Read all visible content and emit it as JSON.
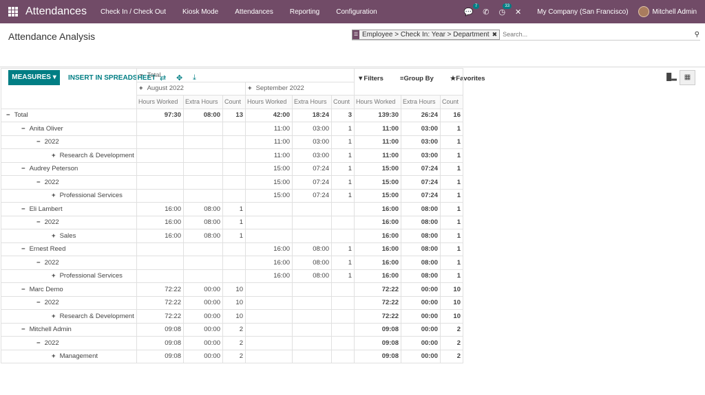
{
  "nav": {
    "brand": "Attendances",
    "menus": [
      "Check In / Check Out",
      "Kiosk Mode",
      "Attendances",
      "Reporting",
      "Configuration"
    ],
    "chat_count": "7",
    "activity_count": "33",
    "company": "My Company (San Francisco)",
    "user": "Mitchell Admin"
  },
  "control": {
    "title": "Attendance Analysis",
    "facet": "Employee > Check In: Year > Department",
    "search_placeholder": "Search...",
    "measures": "MEASURES",
    "insert": "INSERT IN SPREADSHEET",
    "filters": "Filters",
    "group_by": "Group By",
    "favorites": "Favorites"
  },
  "pivot": {
    "total": "Total",
    "col_groups": [
      "August 2022",
      "September 2022"
    ],
    "measures": [
      "Hours Worked",
      "Extra Hours",
      "Count"
    ],
    "rows": [
      {
        "label": "Total",
        "lvl": 0,
        "sym": "−",
        "bold": true,
        "cells": [
          "97:30",
          "08:00",
          "13",
          "42:00",
          "18:24",
          "3",
          "139:30",
          "26:24",
          "16"
        ]
      },
      {
        "label": "Anita Oliver",
        "lvl": 1,
        "sym": "−",
        "cells": [
          "",
          "",
          "",
          "11:00",
          "03:00",
          "1",
          "11:00",
          "03:00",
          "1"
        ]
      },
      {
        "label": "2022",
        "lvl": 2,
        "sym": "−",
        "cells": [
          "",
          "",
          "",
          "11:00",
          "03:00",
          "1",
          "11:00",
          "03:00",
          "1"
        ]
      },
      {
        "label": "Research & Development",
        "lvl": 3,
        "sym": "+",
        "cells": [
          "",
          "",
          "",
          "11:00",
          "03:00",
          "1",
          "11:00",
          "03:00",
          "1"
        ]
      },
      {
        "label": "Audrey Peterson",
        "lvl": 1,
        "sym": "−",
        "cells": [
          "",
          "",
          "",
          "15:00",
          "07:24",
          "1",
          "15:00",
          "07:24",
          "1"
        ]
      },
      {
        "label": "2022",
        "lvl": 2,
        "sym": "−",
        "cells": [
          "",
          "",
          "",
          "15:00",
          "07:24",
          "1",
          "15:00",
          "07:24",
          "1"
        ]
      },
      {
        "label": "Professional Services",
        "lvl": 3,
        "sym": "+",
        "cells": [
          "",
          "",
          "",
          "15:00",
          "07:24",
          "1",
          "15:00",
          "07:24",
          "1"
        ]
      },
      {
        "label": "Eli Lambert",
        "lvl": 1,
        "sym": "−",
        "cells": [
          "16:00",
          "08:00",
          "1",
          "",
          "",
          "",
          "16:00",
          "08:00",
          "1"
        ]
      },
      {
        "label": "2022",
        "lvl": 2,
        "sym": "−",
        "cells": [
          "16:00",
          "08:00",
          "1",
          "",
          "",
          "",
          "16:00",
          "08:00",
          "1"
        ]
      },
      {
        "label": "Sales",
        "lvl": 3,
        "sym": "+",
        "cells": [
          "16:00",
          "08:00",
          "1",
          "",
          "",
          "",
          "16:00",
          "08:00",
          "1"
        ]
      },
      {
        "label": "Ernest Reed",
        "lvl": 1,
        "sym": "−",
        "cells": [
          "",
          "",
          "",
          "16:00",
          "08:00",
          "1",
          "16:00",
          "08:00",
          "1"
        ]
      },
      {
        "label": "2022",
        "lvl": 2,
        "sym": "−",
        "cells": [
          "",
          "",
          "",
          "16:00",
          "08:00",
          "1",
          "16:00",
          "08:00",
          "1"
        ]
      },
      {
        "label": "Professional Services",
        "lvl": 3,
        "sym": "+",
        "cells": [
          "",
          "",
          "",
          "16:00",
          "08:00",
          "1",
          "16:00",
          "08:00",
          "1"
        ]
      },
      {
        "label": "Marc Demo",
        "lvl": 1,
        "sym": "−",
        "cells": [
          "72:22",
          "00:00",
          "10",
          "",
          "",
          "",
          "72:22",
          "00:00",
          "10"
        ]
      },
      {
        "label": "2022",
        "lvl": 2,
        "sym": "−",
        "cells": [
          "72:22",
          "00:00",
          "10",
          "",
          "",
          "",
          "72:22",
          "00:00",
          "10"
        ]
      },
      {
        "label": "Research & Development",
        "lvl": 3,
        "sym": "+",
        "cells": [
          "72:22",
          "00:00",
          "10",
          "",
          "",
          "",
          "72:22",
          "00:00",
          "10"
        ]
      },
      {
        "label": "Mitchell Admin",
        "lvl": 1,
        "sym": "−",
        "cells": [
          "09:08",
          "00:00",
          "2",
          "",
          "",
          "",
          "09:08",
          "00:00",
          "2"
        ]
      },
      {
        "label": "2022",
        "lvl": 2,
        "sym": "−",
        "cells": [
          "09:08",
          "00:00",
          "2",
          "",
          "",
          "",
          "09:08",
          "00:00",
          "2"
        ]
      },
      {
        "label": "Management",
        "lvl": 3,
        "sym": "+",
        "cells": [
          "09:08",
          "00:00",
          "2",
          "",
          "",
          "",
          "09:08",
          "00:00",
          "2"
        ]
      }
    ]
  }
}
